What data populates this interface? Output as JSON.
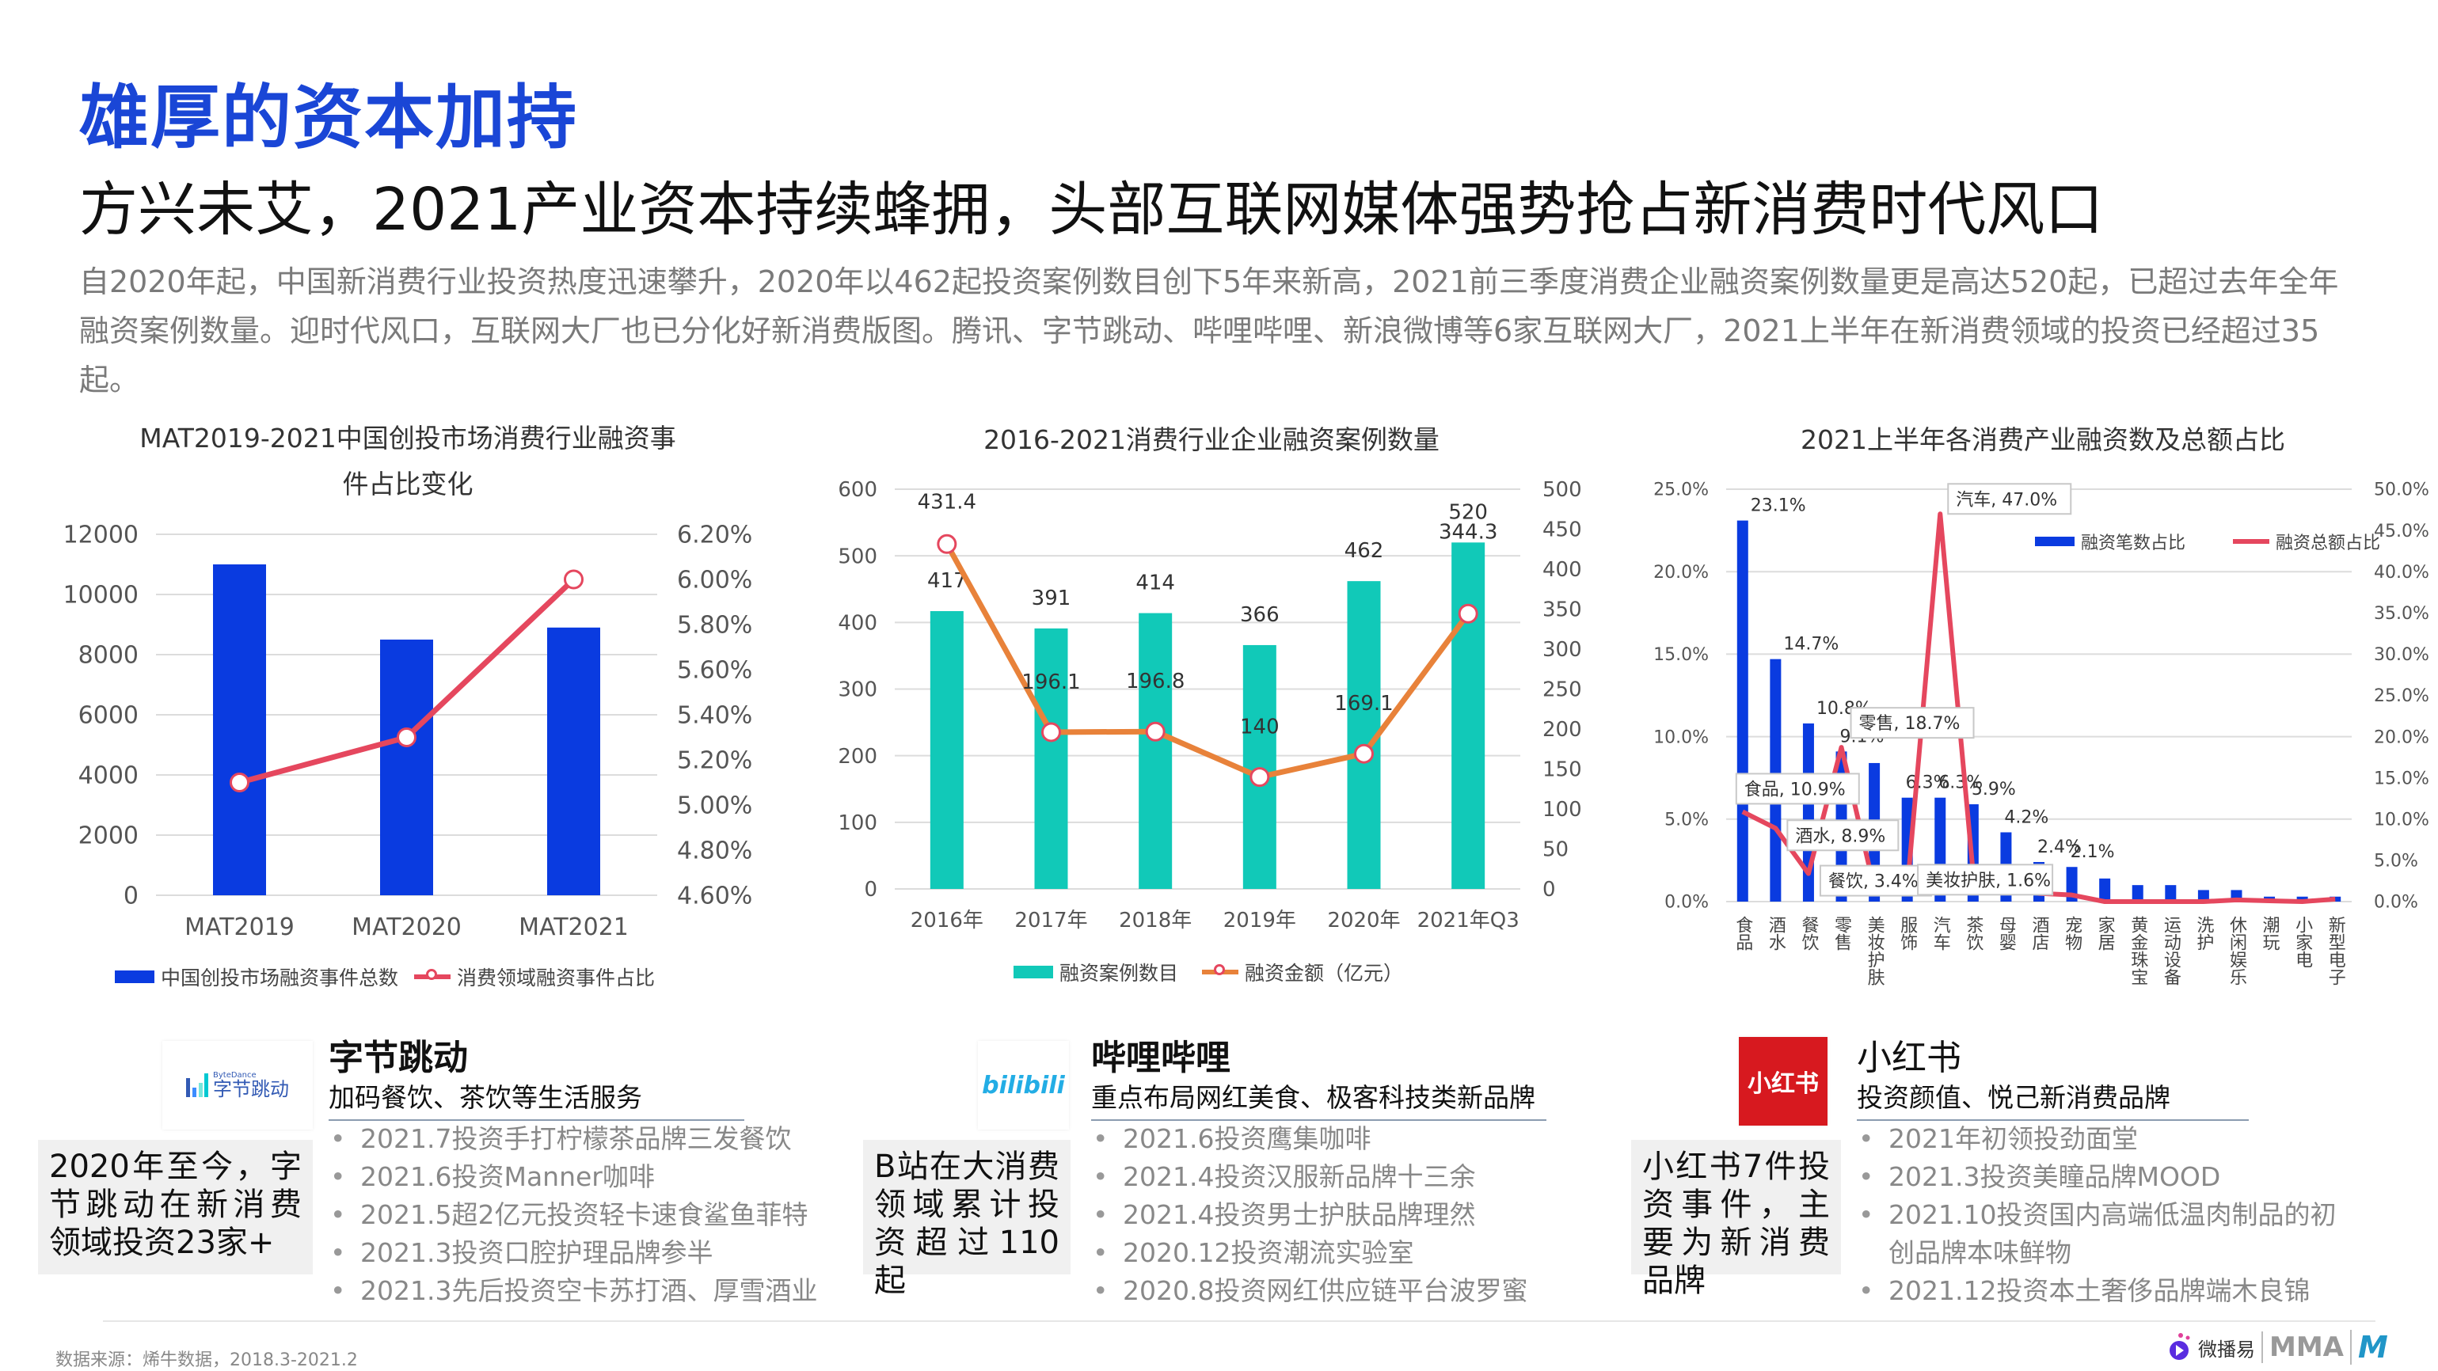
{
  "header": {
    "title": "雄厚的资本加持",
    "subtitle": "方兴未艾，2021产业资本持续蜂拥，头部互联网媒体强势抢占新消费时代风口",
    "intro": "自2020年起，中国新消费行业投资热度迅速攀升，2020年以462起投资案例数目创下5年来新高，2021前三季度消费企业融资案例数量更是高达520起，已超过去年全年融资案例数量。迎时代风口，互联网大厂也已分化好新消费版图。腾讯、字节跳动、哔哩哔哩、新浪微博等6家互联网大厂，2021上半年在新消费领域的投资已经超过35起。"
  },
  "colors": {
    "title_blue": "#1a46d6",
    "bar_blue": "#0a3be0",
    "teal": "#11c9b8",
    "orange": "#e8823a",
    "red": "#e5475e"
  },
  "chart_data": [
    {
      "type": "bar",
      "title_line1": "MAT2019-2021中国创投市场消费行业融资事",
      "title_line2": "件占比变化",
      "categories": [
        "MAT2019",
        "MAT2020",
        "MAT2021"
      ],
      "series": [
        {
          "name": "中国创投市场融资事件总数",
          "kind": "bar",
          "axis": "left",
          "values": [
            11000,
            8500,
            8900
          ]
        },
        {
          "name": "消费领域融资事件占比",
          "kind": "line",
          "axis": "right",
          "values": [
            5.1,
            5.3,
            6.0
          ]
        }
      ],
      "ylim": [
        0,
        12000
      ],
      "yticks": [
        0,
        2000,
        4000,
        6000,
        8000,
        10000,
        12000
      ],
      "y2lim": [
        4.6,
        6.2
      ],
      "y2ticks": [
        "4.60%",
        "4.80%",
        "5.00%",
        "5.20%",
        "5.40%",
        "5.60%",
        "5.80%",
        "6.00%",
        "6.20%"
      ],
      "grid": true,
      "legend": "bottom"
    },
    {
      "type": "bar",
      "title": "2016-2021消费行业企业融资案例数量",
      "categories": [
        "2016年",
        "2017年",
        "2018年",
        "2019年",
        "2020年",
        "2021年Q3"
      ],
      "series": [
        {
          "name": "融资案例数目",
          "kind": "bar",
          "axis": "left",
          "values": [
            417,
            391,
            414,
            366,
            462,
            520
          ]
        },
        {
          "name": "融资金额（亿元）",
          "kind": "line",
          "axis": "right",
          "values": [
            431.4,
            196.1,
            196.8,
            140,
            169.1,
            344.3
          ]
        }
      ],
      "ylim": [
        0,
        600
      ],
      "yticks": [
        0,
        100,
        200,
        300,
        400,
        500,
        600
      ],
      "y2lim": [
        0,
        500
      ],
      "y2ticks": [
        "0",
        "50",
        "100",
        "150",
        "200",
        "250",
        "300",
        "350",
        "400",
        "450",
        "500"
      ],
      "grid": true,
      "legend": "bottom"
    },
    {
      "type": "bar",
      "title": "2021上半年各消费产业融资数及总额占比",
      "categories": [
        "食品",
        "酒水",
        "餐饮",
        "零售",
        "美妆护肤",
        "服饰",
        "汽车",
        "茶饮",
        "母婴",
        "酒店",
        "宠物",
        "家居",
        "黄金珠宝",
        "运动设备",
        "洗护",
        "休闲娱乐",
        "潮玩",
        "小家电",
        "新型电子"
      ],
      "series": [
        {
          "name": "融资笔数占比",
          "kind": "bar",
          "axis": "left",
          "values": [
            23.1,
            14.7,
            10.8,
            9.1,
            8.4,
            6.3,
            6.3,
            5.9,
            4.2,
            2.4,
            2.1,
            1.4,
            1.0,
            1.0,
            0.7,
            0.7,
            0.3,
            0.3,
            0.3
          ],
          "labels": [
            "23.1%",
            "14.7%",
            "10.8%",
            "9.1%",
            "",
            "6.3%",
            "6.3%",
            "5.9%",
            "4.2%",
            "2.4%",
            "2.1%",
            "",
            "",
            "",
            "",
            "",
            "",
            "",
            ""
          ]
        },
        {
          "name": "融资总额占比",
          "kind": "line",
          "axis": "right",
          "values": [
            10.9,
            8.9,
            3.4,
            18.7,
            1.6,
            1.5,
            47.0,
            3.5,
            1.6,
            1.0,
            0.8,
            0,
            0,
            0,
            0,
            0.2,
            0.1,
            0,
            0.3
          ],
          "callouts": [
            "食品, 10.9%",
            "酒水, 8.9%",
            "餐饮, 3.4%",
            "零售, 18.7%",
            "美妆护肤, 1.6%",
            "",
            "汽车, 47.0%",
            "",
            "",
            "",
            "",
            "",
            "",
            "",
            "",
            "",
            "",
            "",
            ""
          ]
        }
      ],
      "ylim": [
        0,
        25
      ],
      "yticks": [
        "0.0%",
        "5.0%",
        "10.0%",
        "15.0%",
        "20.0%",
        "25.0%"
      ],
      "y2lim": [
        0,
        50
      ],
      "y2ticks": [
        "0.0%",
        "5.0%",
        "10.0%",
        "15.0%",
        "20.0%",
        "25.0%",
        "30.0%",
        "35.0%",
        "40.0%",
        "45.0%",
        "50.0%"
      ],
      "grid": true,
      "legend": "top-right"
    }
  ],
  "companies": [
    {
      "name": "字节跳动",
      "logo_text": "字节跳动",
      "logo_small": "ByteDance",
      "tagline": "加码餐饮、茶饮等生活服务",
      "summary": "2020年至今，字节跳动在新消费领域投资23家+",
      "bullets": [
        "2021.7投资手打柠檬茶品牌三发餐饮",
        "2021.6投资Manner咖啡",
        "2021.5超2亿元投资轻卡速食鲨鱼菲特",
        "2021.3投资口腔护理品牌参半",
        "2021.3先后投资空卡苏打酒、厚雪酒业"
      ]
    },
    {
      "name": "哔哩哔哩",
      "logo_text": "bilibili",
      "tagline": "重点布局网红美食、极客科技类新品牌",
      "summary": "B站在大消费领域累计投资超过110起",
      "bullets": [
        "2021.6投资鹰集咖啡",
        "2021.4投资汉服新品牌十三余",
        "2021.4投资男士护肤品牌理然",
        "2020.12投资潮流实验室",
        "2020.8投资网红供应链平台波罗蜜"
      ]
    },
    {
      "name": "小红书",
      "logo_text": "小红书",
      "tagline": "投资颜值、悦己新消费品牌",
      "summary": "小红书7件投资事件，主要为新消费品牌",
      "bullets": [
        "2021年初领投劲面堂",
        "2021.3投资美瞳品牌MOOD",
        "2021.10投资国内高端低温肉制品的初创品牌本味鲜物",
        "2021.12投资本土奢侈品牌端木良锦"
      ]
    }
  ],
  "footer": {
    "source": "数据来源：烯牛数据，2018.3-2021.2",
    "brand1": "微播易",
    "brand2": "MMA",
    "brand3": "M"
  }
}
